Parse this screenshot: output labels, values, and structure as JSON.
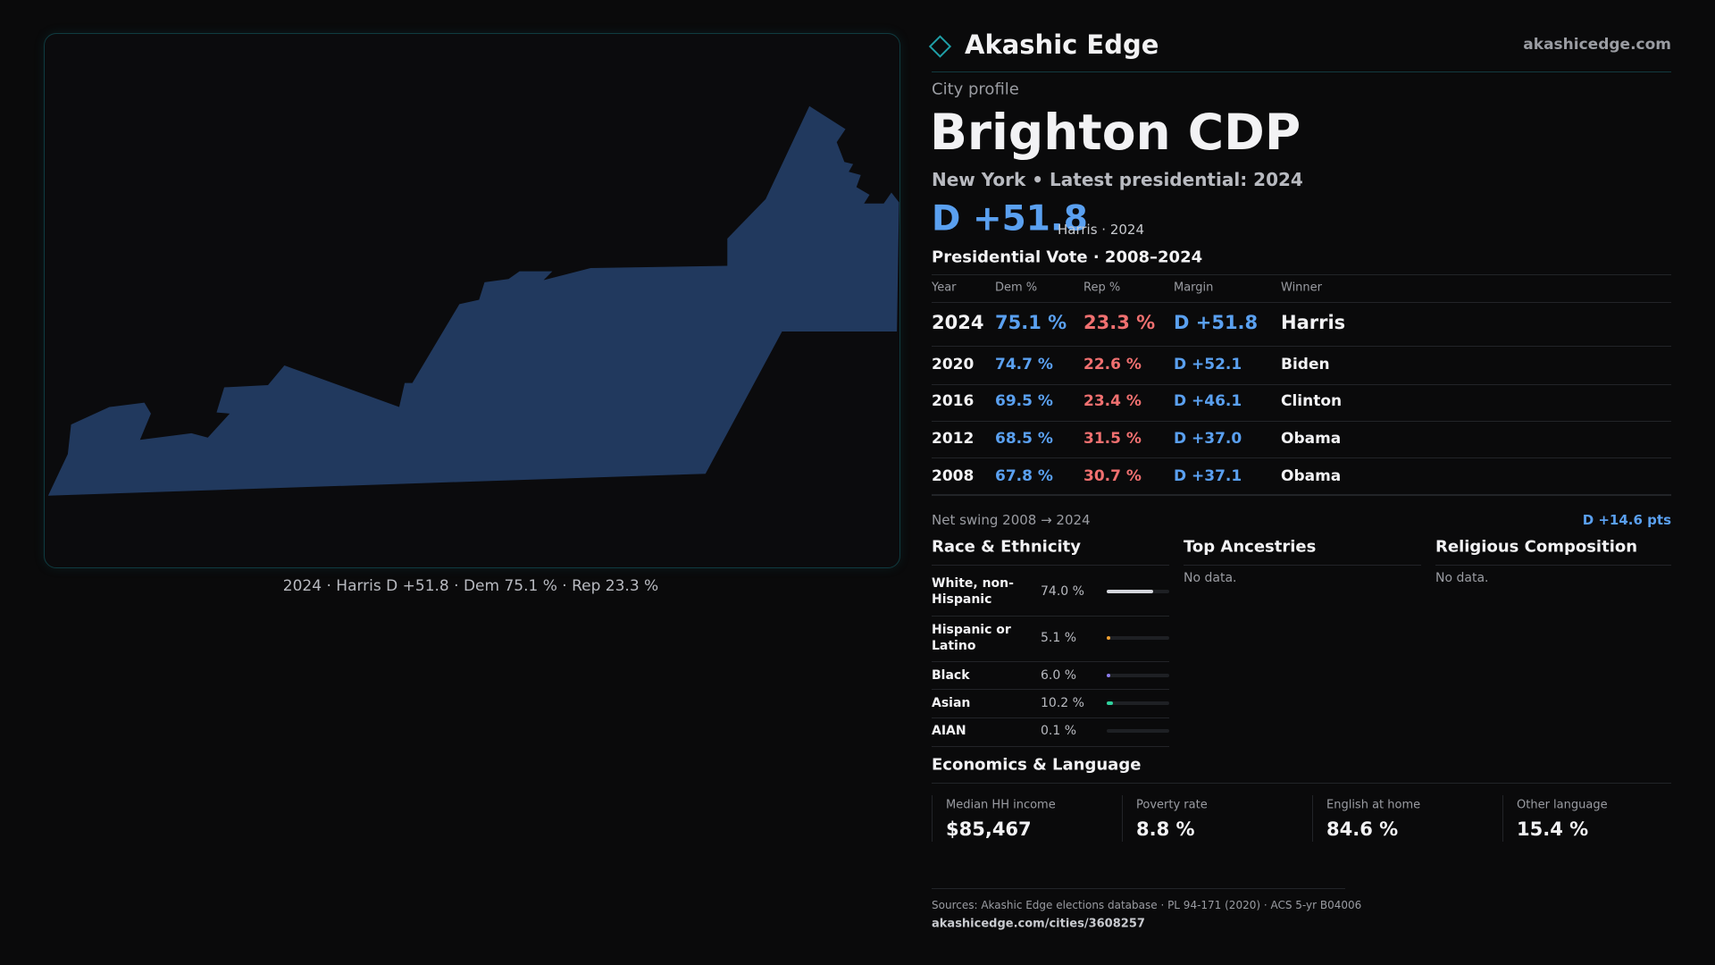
{
  "header": {
    "brand": "Akashic Edge",
    "site": "akashicedge.com"
  },
  "map": {
    "caption": "2024 · Harris D +51.8 · Dem 75.1 % · Rep 23.3 %"
  },
  "profile": {
    "kicker": "City profile",
    "title": "Brighton CDP",
    "state": "New York",
    "latest": "• Latest presidential: 2024",
    "margin": "D +51.8",
    "margin_note": "Harris · 2024"
  },
  "vote_table": {
    "title": "Presidential Vote · 2008–2024",
    "columns": [
      "Year",
      "Dem %",
      "Rep %",
      "Margin",
      "Winner"
    ],
    "rows": [
      [
        "2024",
        "75.1 %",
        "23.3 %",
        "D +51.8",
        "Harris"
      ],
      [
        "2020",
        "74.7 %",
        "22.6 %",
        "D +52.1",
        "Biden"
      ],
      [
        "2016",
        "69.5 %",
        "23.4 %",
        "D +46.1",
        "Clinton"
      ],
      [
        "2012",
        "68.5 %",
        "31.5 %",
        "D +37.0",
        "Obama"
      ],
      [
        "2008",
        "67.8 %",
        "30.7 %",
        "D +37.1",
        "Obama"
      ]
    ]
  },
  "swing": {
    "label": "Net swing 2008 → 2024",
    "value": "D +14.6 pts"
  },
  "race": {
    "title": "Race & Ethnicity",
    "rows": [
      {
        "group": "White, non-Hispanic",
        "pct": "74.0 %",
        "color": "#d4d6dc"
      },
      {
        "group": "Hispanic or Latino",
        "pct": "5.1 %",
        "color": "#f0a030"
      },
      {
        "group": "Black",
        "pct": "6.0 %",
        "color": "#8c7cf0"
      },
      {
        "group": "Asian",
        "pct": "10.2 %",
        "color": "#2fd09c"
      },
      {
        "group": "AIAN",
        "pct": "0.1 %",
        "color": "#9aa0a8"
      }
    ]
  },
  "ancestries": {
    "title": "Top Ancestries",
    "note": "No data."
  },
  "religion": {
    "title": "Religious Composition",
    "note": "No data."
  },
  "economics": {
    "title": "Economics & Language",
    "stats": [
      {
        "label": "Median HH income",
        "value": "$85,467"
      },
      {
        "label": "Poverty rate",
        "value": "8.8 %"
      },
      {
        "label": "English at home",
        "value": "84.6 %"
      },
      {
        "label": "Other language",
        "value": "15.4 %"
      }
    ]
  },
  "footer": {
    "sources": "Sources: Akashic Edge elections database · PL 94-171 (2020) · ACS 5-yr B04006",
    "url": "akashicedge.com/cities/3608257"
  }
}
